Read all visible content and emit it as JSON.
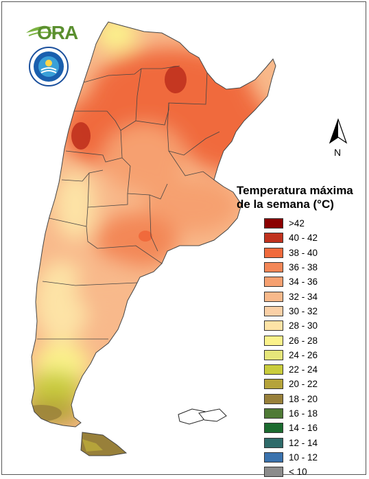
{
  "logo": {
    "text": "ORA",
    "seal_icon": "smn-seal-icon"
  },
  "compass": {
    "label": "N"
  },
  "legend": {
    "title_line1": "Temperatura máxima",
    "title_line2": "de la semana (°C)",
    "items": [
      {
        "label": ">42",
        "color": "#8b0000"
      },
      {
        "label": "40 - 42",
        "color": "#c0321e"
      },
      {
        "label": "38 - 40",
        "color": "#f06a3c"
      },
      {
        "label": "36 - 38",
        "color": "#f38757"
      },
      {
        "label": "34 - 36",
        "color": "#f6a070"
      },
      {
        "label": "32 - 34",
        "color": "#f8b98b"
      },
      {
        "label": "30 - 32",
        "color": "#fad0a6"
      },
      {
        "label": "28 - 30",
        "color": "#fde3a6"
      },
      {
        "label": "26 - 28",
        "color": "#fbf28b"
      },
      {
        "label": "24 - 26",
        "color": "#e6e67a"
      },
      {
        "label": "22 - 24",
        "color": "#c9cc3c"
      },
      {
        "label": "20 - 22",
        "color": "#b5a33a"
      },
      {
        "label": "18 - 20",
        "color": "#98803a"
      },
      {
        "label": "16 - 18",
        "color": "#4f7a36"
      },
      {
        "label": "14 - 16",
        "color": "#1b6b2f"
      },
      {
        "label": "12 - 14",
        "color": "#2f6b6a"
      },
      {
        "label": "10 - 12",
        "color": "#3a72ad"
      },
      {
        "label": "< 10",
        "color": "#8c8c8c"
      }
    ]
  }
}
